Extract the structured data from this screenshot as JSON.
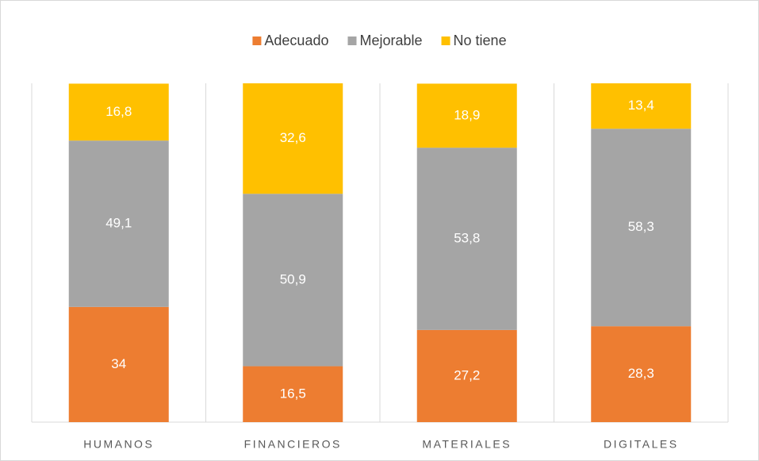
{
  "chart_data": {
    "type": "stacked_bar",
    "categories": [
      "HUMANOS",
      "FINANCIEROS",
      "MATERIALES",
      "DIGITALES"
    ],
    "series": [
      {
        "name": "Adecuado",
        "color": "#ED7D31",
        "values": [
          34,
          16.5,
          27.2,
          28.3
        ],
        "value_labels": [
          "34",
          "16,5",
          "27,2",
          "28,3"
        ]
      },
      {
        "name": "Mejorable",
        "color": "#A5A5A5",
        "values": [
          49.1,
          50.9,
          53.8,
          58.3
        ],
        "value_labels": [
          "49,1",
          "50,9",
          "53,8",
          "58,3"
        ]
      },
      {
        "name": "No tiene",
        "color": "#FFC000",
        "values": [
          16.8,
          32.6,
          18.9,
          13.4
        ],
        "value_labels": [
          "16,8",
          "32,6",
          "18,9",
          "13,4"
        ]
      }
    ],
    "ylim": [
      0,
      100
    ],
    "legend": "top"
  }
}
